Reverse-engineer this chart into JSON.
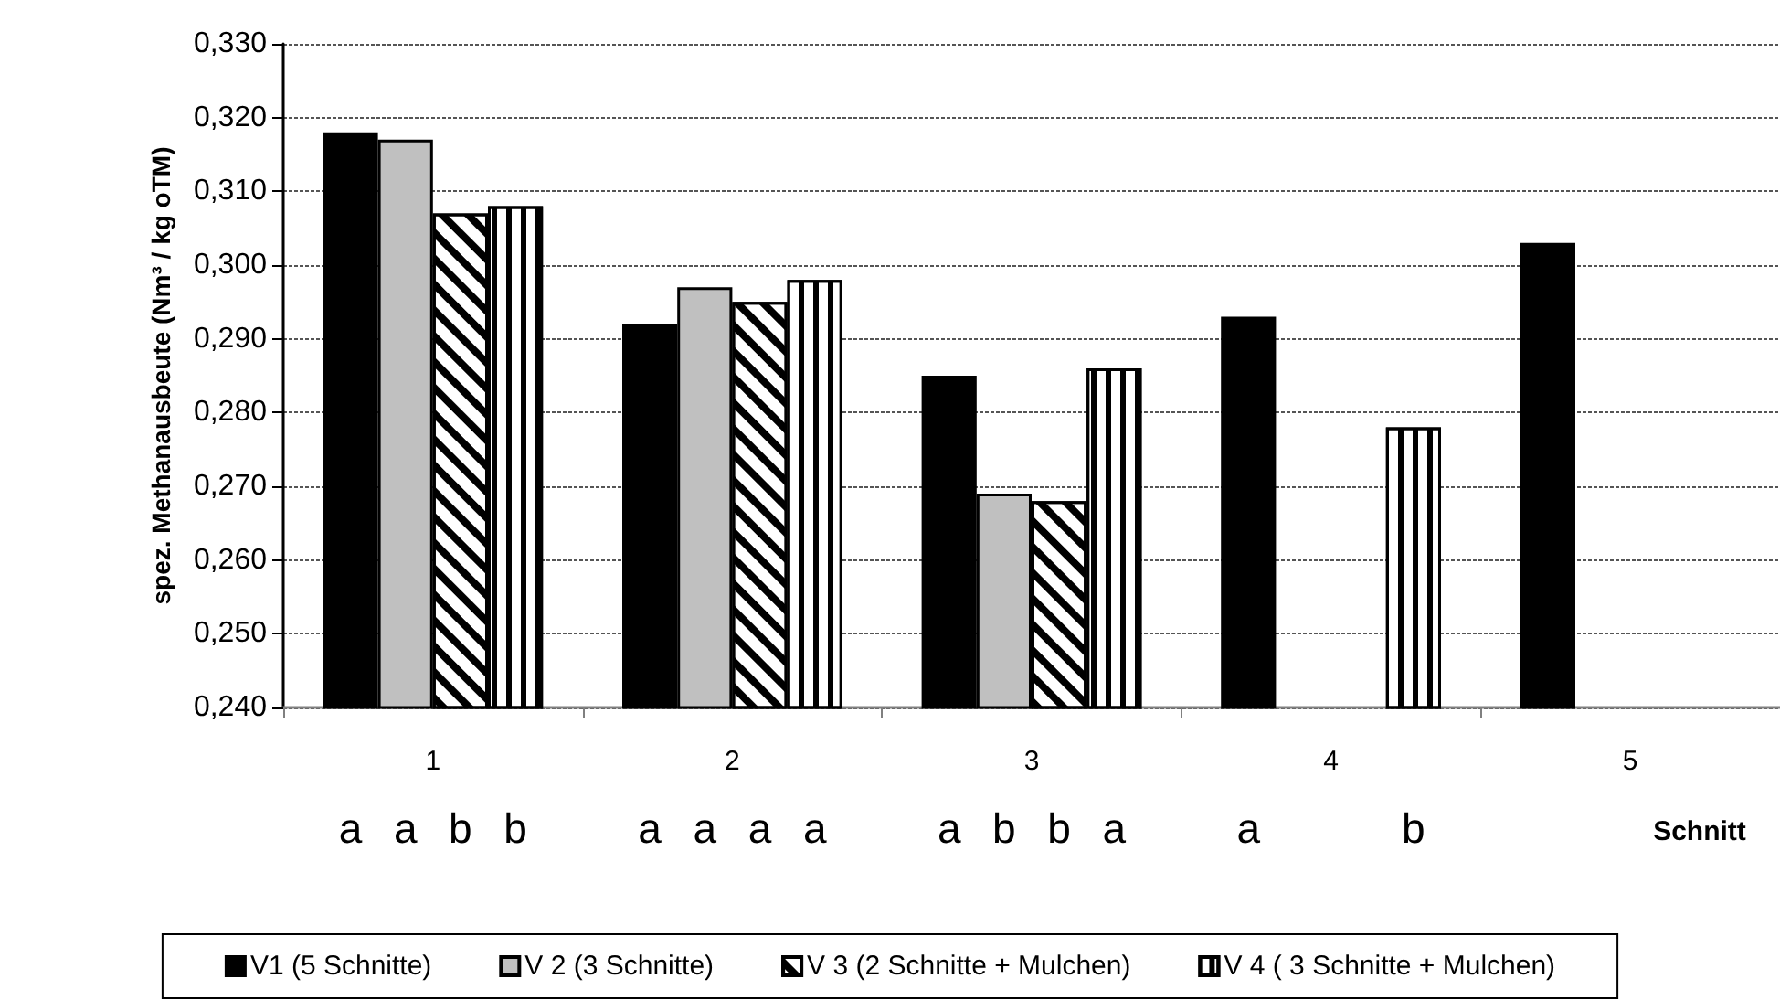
{
  "chart_data": {
    "type": "bar",
    "ylabel": "spez. Methanausbeute (Nm³ / kg oTM)",
    "xlabel": "Schnitt",
    "categories": [
      "1",
      "2",
      "3",
      "4",
      "5"
    ],
    "series": [
      {
        "name": "V1 (5 Schnitte)",
        "color": "#000000",
        "values": [
          0.318,
          0.292,
          0.285,
          0.293,
          0.303
        ]
      },
      {
        "name": "V 2 (3 Schnitte)",
        "color": "#c0c0c0",
        "values": [
          0.317,
          0.297,
          0.269,
          null,
          null
        ]
      },
      {
        "name": "V 3 (2 Schnitte + Mulchen)",
        "color": "#ffffff",
        "values": [
          0.307,
          0.295,
          0.268,
          null,
          null
        ]
      },
      {
        "name": "V 4 ( 3 Schnitte + Mulchen)",
        "color": "#ffffff",
        "values": [
          0.308,
          0.298,
          0.286,
          0.278,
          null
        ]
      }
    ],
    "ylim": [
      0.24,
      0.33
    ],
    "yticks": [
      {
        "value": 0.24,
        "label": "0,240"
      },
      {
        "value": 0.25,
        "label": "0,250"
      },
      {
        "value": 0.26,
        "label": "0,260"
      },
      {
        "value": 0.27,
        "label": "0,270"
      },
      {
        "value": 0.28,
        "label": "0,280"
      },
      {
        "value": 0.29,
        "label": "0,290"
      },
      {
        "value": 0.3,
        "label": "0,300"
      },
      {
        "value": 0.31,
        "label": "0,310"
      },
      {
        "value": 0.32,
        "label": "0,320"
      },
      {
        "value": 0.33,
        "label": "0,330"
      }
    ],
    "annotations": [
      "a",
      "a",
      "b",
      "b",
      "a",
      "a",
      "a",
      "a",
      "a",
      "b",
      "b",
      "a",
      "a",
      "b"
    ],
    "grid": "y",
    "legend": "bottom"
  }
}
